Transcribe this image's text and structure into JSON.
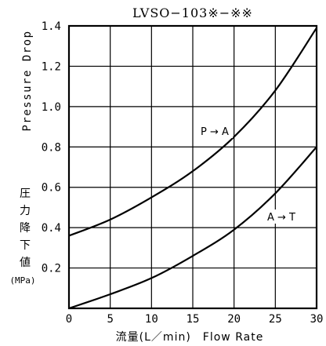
{
  "chart_data": {
    "type": "line",
    "title": "LVSO−103※−※※",
    "xlabel": "流量(L／min)　Flow Rate",
    "ylabel_en": "Pressure Drop",
    "ylabel_jp": [
      "圧",
      "力",
      "降",
      "下",
      "値"
    ],
    "ylabel_unit": "(MPa)",
    "xlim": [
      0,
      30
    ],
    "ylim": [
      0,
      1.4
    ],
    "x_ticks": [
      0,
      5,
      10,
      15,
      20,
      25,
      30
    ],
    "x_tick_labels": [
      "0",
      "5",
      "10",
      "15",
      "20",
      "25",
      "30"
    ],
    "y_ticks": [
      0.2,
      0.4,
      0.6,
      0.8,
      1.0,
      1.2,
      1.4
    ],
    "y_tick_labels": [
      "0.2",
      "0.4",
      "0.6",
      "0.8",
      "1.0",
      "1.2",
      "1.4"
    ],
    "grid": true,
    "series": [
      {
        "name": "P → A",
        "x": [
          0,
          5,
          10,
          15,
          20,
          25,
          30
        ],
        "y": [
          0.36,
          0.44,
          0.55,
          0.68,
          0.85,
          1.08,
          1.39
        ]
      },
      {
        "name": "A → T",
        "x": [
          0,
          5,
          10,
          15,
          20,
          25,
          30
        ],
        "y": [
          0.0,
          0.07,
          0.15,
          0.26,
          0.39,
          0.57,
          0.8
        ]
      }
    ]
  }
}
